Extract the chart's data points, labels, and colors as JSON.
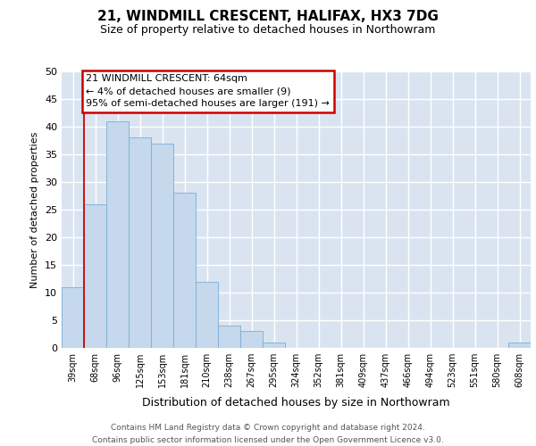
{
  "title1": "21, WINDMILL CRESCENT, HALIFAX, HX3 7DG",
  "title2": "Size of property relative to detached houses in Northowram",
  "xlabel": "Distribution of detached houses by size in Northowram",
  "ylabel": "Number of detached properties",
  "categories": [
    "39sqm",
    "68sqm",
    "96sqm",
    "125sqm",
    "153sqm",
    "181sqm",
    "210sqm",
    "238sqm",
    "267sqm",
    "295sqm",
    "324sqm",
    "352sqm",
    "381sqm",
    "409sqm",
    "437sqm",
    "466sqm",
    "494sqm",
    "523sqm",
    "551sqm",
    "580sqm",
    "608sqm"
  ],
  "values": [
    11,
    26,
    41,
    38,
    37,
    28,
    12,
    4,
    3,
    1,
    0,
    0,
    0,
    0,
    0,
    0,
    0,
    0,
    0,
    0,
    1
  ],
  "bar_color": "#c5d8ec",
  "bar_edge_color": "#7aaed4",
  "ylim": [
    0,
    50
  ],
  "yticks": [
    0,
    5,
    10,
    15,
    20,
    25,
    30,
    35,
    40,
    45,
    50
  ],
  "annotation_text": "21 WINDMILL CRESCENT: 64sqm\n← 4% of detached houses are smaller (9)\n95% of semi-detached houses are larger (191) →",
  "annotation_box_facecolor": "#ffffff",
  "annotation_box_edgecolor": "#cc0000",
  "vline_x": 0.5,
  "vline_color": "#cc0000",
  "plot_bg_color": "#dae4f0",
  "fig_bg_color": "#ffffff",
  "grid_color": "#ffffff",
  "footer_text": "Contains HM Land Registry data © Crown copyright and database right 2024.\nContains public sector information licensed under the Open Government Licence v3.0.",
  "title1_fontsize": 11,
  "title2_fontsize": 9,
  "ylabel_fontsize": 8,
  "xlabel_fontsize": 9,
  "tick_fontsize": 7,
  "annotation_fontsize": 8,
  "footer_fontsize": 6.5
}
